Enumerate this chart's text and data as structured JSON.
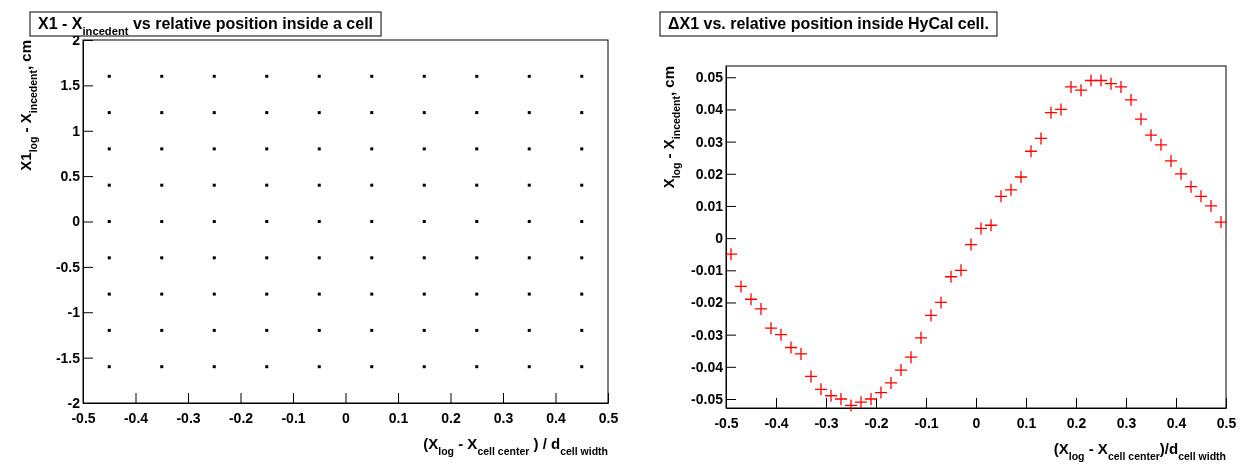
{
  "chart_data": [
    {
      "type": "scatter",
      "title": "X1 - X$_{incedent}$ vs relative position inside a cell",
      "xlabel": "(X$_{log}$ - X$_{cell center}$ ) / d$_{cell width}$",
      "ylabel": "X1$_{log}$ - X$_{incedent}$, cm",
      "marker": "square",
      "xlim": [
        -0.5,
        0.5
      ],
      "ylim": [
        -2,
        2
      ],
      "xticks": [
        -0.5,
        -0.4,
        -0.3,
        -0.2,
        -0.1,
        0,
        0.1,
        0.2,
        0.3,
        0.4,
        0.5
      ],
      "yticks": [
        -2,
        -1.5,
        -1,
        -0.5,
        0,
        0.5,
        1,
        1.5,
        2
      ],
      "grid": false,
      "x": [
        -0.45,
        -0.35,
        -0.25,
        -0.15,
        -0.05,
        0.05,
        0.15,
        0.25,
        0.35,
        0.45
      ],
      "series": [
        {
          "color": "#000000",
          "values": [
            1.6,
            1.6,
            1.6,
            1.6,
            1.6,
            1.6,
            1.6,
            1.6,
            1.6,
            1.6
          ]
        },
        {
          "color": "#000000",
          "values": [
            1.2,
            1.2,
            1.2,
            1.2,
            1.2,
            1.2,
            1.2,
            1.2,
            1.2,
            1.2
          ]
        },
        {
          "color": "#000000",
          "values": [
            0.8,
            0.8,
            0.8,
            0.8,
            0.8,
            0.8,
            0.8,
            0.8,
            0.8,
            0.8
          ]
        },
        {
          "color": "#000000",
          "values": [
            0.4,
            0.4,
            0.4,
            0.4,
            0.4,
            0.4,
            0.4,
            0.4,
            0.4,
            0.4
          ]
        },
        {
          "color": "#000000",
          "values": [
            0,
            0,
            0,
            0,
            0,
            0,
            0,
            0,
            0,
            0
          ]
        },
        {
          "color": "#000000",
          "values": [
            -0.4,
            -0.4,
            -0.4,
            -0.4,
            -0.4,
            -0.4,
            -0.4,
            -0.4,
            -0.4,
            -0.4
          ]
        },
        {
          "color": "#000000",
          "values": [
            -0.8,
            -0.8,
            -0.8,
            -0.8,
            -0.8,
            -0.8,
            -0.8,
            -0.8,
            -0.8,
            -0.8
          ]
        },
        {
          "color": "#000000",
          "values": [
            -1.2,
            -1.2,
            -1.2,
            -1.2,
            -1.2,
            -1.2,
            -1.2,
            -1.2,
            -1.2,
            -1.2
          ]
        },
        {
          "color": "#000000",
          "values": [
            -1.6,
            -1.6,
            -1.6,
            -1.6,
            -1.6,
            -1.6,
            -1.6,
            -1.6,
            -1.6,
            -1.6
          ]
        }
      ]
    },
    {
      "type": "scatter",
      "title": "ΔX1 vs. relative position inside HyCal cell.",
      "xlabel": "(X$_{log}$ - X$_{cell center}$)/d$_{cell width}$",
      "ylabel": "X$_{log}$ - X$_{incedent}$, cm",
      "marker": "cross",
      "xlim": [
        -0.5,
        0.5
      ],
      "ylim": [
        -0.0528,
        0.0535
      ],
      "xticks": [
        -0.5,
        -0.4,
        -0.3,
        -0.2,
        -0.1,
        0,
        0.1,
        0.2,
        0.3,
        0.4,
        0.5
      ],
      "yticks": [
        -0.05,
        -0.04,
        -0.03,
        -0.02,
        -0.01,
        0,
        0.01,
        0.02,
        0.03,
        0.04,
        0.05
      ],
      "grid": false,
      "x": [
        -0.49,
        -0.47,
        -0.45,
        -0.43,
        -0.41,
        -0.39,
        -0.37,
        -0.35,
        -0.33,
        -0.31,
        -0.29,
        -0.27,
        -0.25,
        -0.23,
        -0.21,
        -0.19,
        -0.17,
        -0.15,
        -0.13,
        -0.11,
        -0.09,
        -0.07,
        -0.05,
        -0.03,
        -0.01,
        0.01,
        0.03,
        0.05,
        0.07,
        0.09,
        0.11,
        0.13,
        0.15,
        0.17,
        0.19,
        0.21,
        0.23,
        0.25,
        0.27,
        0.29,
        0.31,
        0.33,
        0.35,
        0.37,
        0.39,
        0.41,
        0.43,
        0.45,
        0.47,
        0.49
      ],
      "series": [
        {
          "color": "#ff0000",
          "values": [
            -0.005,
            -0.015,
            -0.019,
            -0.022,
            -0.028,
            -0.03,
            -0.034,
            -0.036,
            -0.043,
            -0.047,
            -0.049,
            -0.05,
            -0.052,
            -0.051,
            -0.05,
            -0.048,
            -0.045,
            -0.041,
            -0.037,
            -0.031,
            -0.024,
            -0.02,
            -0.012,
            -0.01,
            -0.002,
            0.003,
            0.004,
            0.013,
            0.015,
            0.019,
            0.027,
            0.031,
            0.039,
            0.04,
            0.047,
            0.046,
            0.049,
            0.049,
            0.048,
            0.047,
            0.043,
            0.037,
            0.032,
            0.029,
            0.024,
            0.02,
            0.016,
            0.013,
            0.01,
            0.005
          ]
        }
      ]
    }
  ]
}
